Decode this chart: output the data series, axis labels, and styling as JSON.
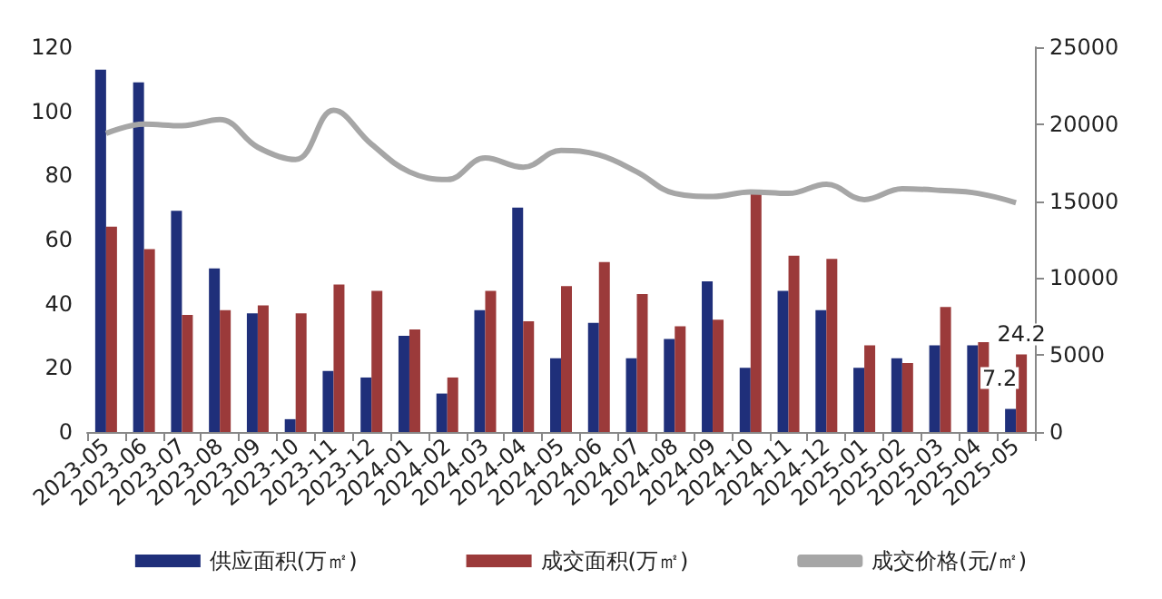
{
  "chart_data": {
    "type": "bar",
    "categories": [
      "2023-05",
      "2023-06",
      "2023-07",
      "2023-08",
      "2023-09",
      "2023-10",
      "2023-11",
      "2023-12",
      "2024-01",
      "2024-02",
      "2024-03",
      "2024-04",
      "2024-05",
      "2024-06",
      "2024-07",
      "2024-08",
      "2024-09",
      "2024-10",
      "2024-11",
      "2024-12",
      "2025-01",
      "2025-02",
      "2025-03",
      "2025-04",
      "2025-05"
    ],
    "series": [
      {
        "name": "供应面积(万㎡)",
        "color": "#1f2f7a",
        "values": [
          113,
          109,
          69,
          51,
          37,
          4,
          19,
          17,
          30,
          12,
          38,
          70,
          23,
          34,
          23,
          29,
          47,
          20,
          44,
          38,
          20,
          23,
          27,
          27,
          7.2
        ],
        "value_labels": [
          null,
          null,
          null,
          null,
          null,
          null,
          null,
          null,
          null,
          null,
          null,
          null,
          null,
          null,
          null,
          null,
          null,
          null,
          null,
          null,
          null,
          null,
          null,
          null,
          "7.2"
        ]
      },
      {
        "name": "成交面积(万㎡)",
        "color": "#9b3a3a",
        "values": [
          64,
          57,
          36.5,
          38,
          39.5,
          37,
          46,
          44,
          32,
          17,
          44,
          34.5,
          45.5,
          53,
          43,
          33,
          35,
          75.5,
          55,
          54,
          27,
          21.5,
          39,
          28,
          24.2
        ],
        "value_labels": [
          null,
          null,
          null,
          null,
          null,
          null,
          null,
          null,
          null,
          null,
          null,
          null,
          null,
          null,
          null,
          null,
          null,
          null,
          null,
          null,
          null,
          null,
          null,
          null,
          "24.2"
        ]
      },
      {
        "name": "成交价格(元/㎡)",
        "type": "line",
        "axis": "y2",
        "color": "#a6a6a6",
        "values": [
          19400,
          20000,
          19900,
          20300,
          18500,
          17700,
          20900,
          18700,
          16900,
          16400,
          17800,
          17200,
          18300,
          18000,
          16900,
          15500,
          15300,
          15600,
          15500,
          16100,
          15100,
          15800,
          15700,
          15500,
          14900
        ]
      }
    ],
    "ylim": [
      0,
      120
    ],
    "yticks": [
      0,
      20,
      40,
      60,
      80,
      100,
      120
    ],
    "y2lim": [
      0,
      25000
    ],
    "y2ticks": [
      0,
      5000,
      10000,
      15000,
      20000,
      25000
    ],
    "legend": "bottom",
    "grid": false,
    "marker": "none"
  }
}
